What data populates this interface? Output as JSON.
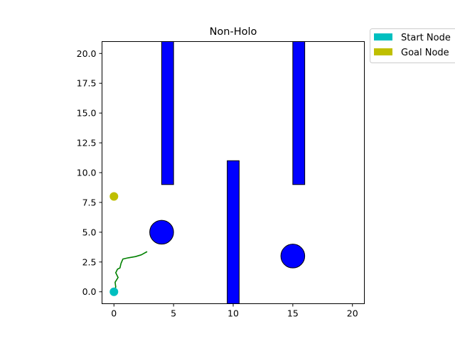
{
  "chart_data": {
    "type": "scatter",
    "title": "Non-Holo",
    "xlabel": "",
    "ylabel": "",
    "xlim": [
      -1,
      21
    ],
    "ylim": [
      -1,
      21
    ],
    "x_ticks": [
      0,
      5,
      10,
      15,
      20
    ],
    "x_tick_labels": [
      "0",
      "5",
      "10",
      "15",
      "20"
    ],
    "y_ticks": [
      0,
      2.5,
      5,
      7.5,
      10,
      12.5,
      15,
      17.5,
      20
    ],
    "y_tick_labels": [
      "0.0",
      "2.5",
      "5.0",
      "7.5",
      "10.0",
      "12.5",
      "15.0",
      "17.5",
      "20.0"
    ],
    "grid": false,
    "legend_placement": "outside-top-right",
    "legend": [
      {
        "label": "Start Node",
        "color": "#00bfbf"
      },
      {
        "label": "Goal Node",
        "color": "#bfbf00"
      }
    ],
    "start_node": {
      "x": 0,
      "y": 0
    },
    "goal_node": {
      "x": 0,
      "y": 8
    },
    "obstacles": {
      "color": "#0000ff",
      "edge_color": "#000000",
      "rectangles": [
        {
          "x": 4,
          "y": 9,
          "width": 1,
          "height": 12
        },
        {
          "x": 9.5,
          "y": -1,
          "width": 1,
          "height": 12
        },
        {
          "x": 15,
          "y": 9,
          "width": 1,
          "height": 12
        }
      ],
      "circles": [
        {
          "x": 4,
          "y": 5,
          "r": 1
        },
        {
          "x": 15,
          "y": 3,
          "r": 1
        }
      ]
    },
    "path": {
      "color": "#008000",
      "points": [
        [
          0,
          0
        ],
        [
          0.15,
          0.4
        ],
        [
          0.1,
          0.8
        ],
        [
          0.35,
          1.2
        ],
        [
          0.15,
          1.6
        ],
        [
          0.3,
          1.9
        ],
        [
          0.5,
          2.0
        ],
        [
          0.6,
          2.4
        ],
        [
          0.75,
          2.75
        ],
        [
          1.2,
          2.85
        ],
        [
          1.8,
          2.95
        ],
        [
          2.3,
          3.1
        ],
        [
          2.75,
          3.35
        ]
      ]
    }
  }
}
